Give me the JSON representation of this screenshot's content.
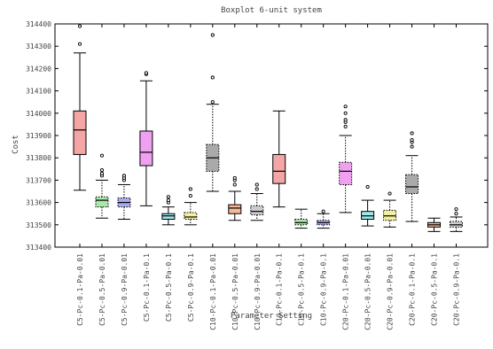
{
  "chart_data": {
    "type": "boxplot",
    "title": "Boxplot 6-unit system",
    "xlabel": "Parameter Setting",
    "ylabel": "Cost",
    "ylim": [
      313400,
      314400
    ],
    "yticks": [
      313400,
      313500,
      313600,
      313700,
      313800,
      313900,
      314000,
      314100,
      314200,
      314300,
      314400
    ],
    "ytick_labels": [
      "313400",
      "313500",
      "313600",
      "313700",
      "313800",
      "313900",
      "314000",
      "314100",
      "314200",
      "314300",
      "314400"
    ],
    "grid": false,
    "legend": "none",
    "categories": [
      "C5-Pc-0.1-Pa-0.01",
      "C5-Pc-0.5-Pa-0.01",
      "C5-Pc-0.9-Pa-0.01",
      "C5-Pc-0.1-Pa-0.1",
      "C5-Pc-0.5-Pa-0.1",
      "C5-Pc-0.9-Pa-0.1",
      "C10-Pc-0.1-Pa-0.01",
      "C10-Pc-0.5-Pa-0.01",
      "C10-Pc-0.9-Pa-0.01",
      "C10-Pc-0.1-Pa-0.1",
      "C10-Pc-0.5-Pa-0.1",
      "C10-Pc-0.9-Pa-0.1",
      "C20-Pc-0.1-Pa-0.01",
      "C20-Pc-0.5-Pa-0.01",
      "C20-Pc-0.9-Pa-0.01",
      "C20-Pc-0.1-Pa-0.1",
      "C20-Pc-0.5-Pa-0.1",
      "C20-Pc-0.9-Pa-0.1"
    ],
    "boxes": [
      {
        "min": 313655,
        "q1": 313815,
        "median": 313925,
        "q3": 314010,
        "max": 314270,
        "outliers": [
          314310,
          314390
        ],
        "color": "#f4a6a6",
        "whisker_style": "solid"
      },
      {
        "min": 313530,
        "q1": 313580,
        "median": 313610,
        "q3": 313625,
        "max": 313700,
        "outliers": [
          313720,
          313730,
          313745,
          313810
        ],
        "color": "#a8e8a8",
        "whisker_style": "dotted"
      },
      {
        "min": 313525,
        "q1": 313580,
        "median": 313600,
        "q3": 313620,
        "max": 313680,
        "outliers": [
          313700,
          313710,
          313720
        ],
        "color": "#aaaaee",
        "whisker_style": "dotted"
      },
      {
        "min": 313585,
        "q1": 313765,
        "median": 313825,
        "q3": 313920,
        "max": 314145,
        "outliers": [
          314175,
          314180
        ],
        "color": "#f0a0f0",
        "whisker_style": "solid"
      },
      {
        "min": 313500,
        "q1": 313525,
        "median": 313540,
        "q3": 313550,
        "max": 313580,
        "outliers": [
          313600,
          313610,
          313625
        ],
        "color": "#9ee8ee",
        "whisker_style": "solid"
      },
      {
        "min": 313500,
        "q1": 313525,
        "median": 313535,
        "q3": 313555,
        "max": 313600,
        "outliers": [
          313630,
          313660
        ],
        "color": "#f0f0a0",
        "whisker_style": "dotted"
      },
      {
        "min": 313650,
        "q1": 313740,
        "median": 313800,
        "q3": 313860,
        "max": 314040,
        "outliers": [
          314050,
          314160,
          314350
        ],
        "color": "#aaaaaa",
        "whisker_style": "dotted"
      },
      {
        "min": 313520,
        "q1": 313550,
        "median": 313575,
        "q3": 313590,
        "max": 313650,
        "outliers": [
          313680,
          313700,
          313710
        ],
        "color": "#f6b69a",
        "whisker_style": "solid"
      },
      {
        "min": 313520,
        "q1": 313545,
        "median": 313560,
        "q3": 313585,
        "max": 313640,
        "outliers": [
          313660,
          313680
        ],
        "color": "#cccccc",
        "whisker_style": "dotted"
      },
      {
        "min": 313580,
        "q1": 313685,
        "median": 313740,
        "q3": 313815,
        "max": 314010,
        "outliers": [],
        "color": "#f4a6a6",
        "whisker_style": "solid"
      },
      {
        "min": 313485,
        "q1": 313500,
        "median": 313510,
        "q3": 313525,
        "max": 313570,
        "outliers": [],
        "color": "#a8e8a8",
        "whisker_style": "dotted"
      },
      {
        "min": 313485,
        "q1": 313500,
        "median": 313510,
        "q3": 313520,
        "max": 313550,
        "outliers": [
          313560
        ],
        "color": "#aaaaee",
        "whisker_style": "dotted"
      },
      {
        "min": 313555,
        "q1": 313680,
        "median": 313740,
        "q3": 313780,
        "max": 313900,
        "outliers": [
          313940,
          313960,
          313970,
          314000,
          314030
        ],
        "color": "#f0a0f0",
        "whisker_style": "dotted"
      },
      {
        "min": 313495,
        "q1": 313525,
        "median": 313540,
        "q3": 313560,
        "max": 313610,
        "outliers": [
          313670
        ],
        "color": "#9ee8ee",
        "whisker_style": "solid"
      },
      {
        "min": 313490,
        "q1": 313520,
        "median": 313540,
        "q3": 313565,
        "max": 313610,
        "outliers": [
          313640
        ],
        "color": "#f0f0a0",
        "whisker_style": "dotted"
      },
      {
        "min": 313515,
        "q1": 313640,
        "median": 313670,
        "q3": 313725,
        "max": 313810,
        "outliers": [
          313850,
          313870,
          313880,
          313910
        ],
        "color": "#aaaaaa",
        "whisker_style": "dotted"
      },
      {
        "min": 313470,
        "q1": 313490,
        "median": 313500,
        "q3": 313510,
        "max": 313530,
        "outliers": [],
        "color": "#f6b69a",
        "whisker_style": "solid"
      },
      {
        "min": 313470,
        "q1": 313490,
        "median": 313500,
        "q3": 313515,
        "max": 313535,
        "outliers": [
          313550,
          313570
        ],
        "color": "#cccccc",
        "whisker_style": "dotted"
      }
    ]
  }
}
